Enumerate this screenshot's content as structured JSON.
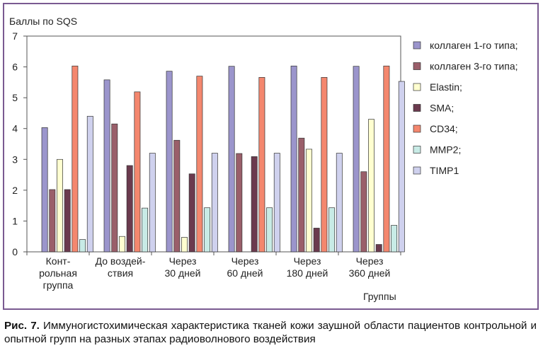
{
  "chart_data": {
    "type": "bar",
    "ylabel": "Баллы по SQS",
    "xlabel": "Группы",
    "ylim": [
      0,
      7
    ],
    "yticks": [
      "0",
      "1",
      "2",
      "3",
      "4",
      "5",
      "6",
      "7"
    ],
    "categories": [
      [
        "Конт-",
        "рольная",
        "группа"
      ],
      [
        "До воздей-",
        "ствия"
      ],
      [
        "Через",
        "30 дней"
      ],
      [
        "Через",
        "60 дней"
      ],
      [
        "Через",
        "180 дней"
      ],
      [
        "Через",
        "360 дней"
      ]
    ],
    "series": [
      {
        "name": "коллаген 1-го типа;",
        "color": "#9b95cc",
        "values": [
          4.03,
          5.58,
          5.86,
          6.02,
          6.03,
          6.02
        ]
      },
      {
        "name": "коллаген 3-го типа;",
        "color": "#9a5f6a",
        "values": [
          2.02,
          4.15,
          3.62,
          3.19,
          3.69,
          2.6
        ]
      },
      {
        "name": "Elastin;",
        "color": "#ffffd0",
        "values": [
          3.0,
          0.5,
          0.47,
          0.0,
          3.33,
          4.3
        ]
      },
      {
        "name": "SMA;",
        "color": "#6b3a4e",
        "values": [
          2.02,
          2.8,
          2.53,
          3.09,
          0.77,
          0.24
        ]
      },
      {
        "name": "CD34;",
        "color": "#f4876e",
        "values": [
          6.03,
          5.19,
          5.7,
          5.66,
          5.66,
          6.03
        ]
      },
      {
        "name": "MMP2;",
        "color": "#c8ebe6",
        "values": [
          0.4,
          1.42,
          1.43,
          1.43,
          1.43,
          0.86
        ]
      },
      {
        "name": "TIMP1",
        "color": "#cfd1ee",
        "values": [
          4.4,
          3.2,
          3.2,
          3.2,
          3.2,
          5.53
        ]
      }
    ],
    "grid": false,
    "legend": "right"
  },
  "caption": {
    "prefix": "Рис. 7.",
    "text": " Иммуногистохимическая характеристика тканей кожи заушной области пациентов контрольной и опытной групп на разных этапах радиоволнового воздействия"
  }
}
